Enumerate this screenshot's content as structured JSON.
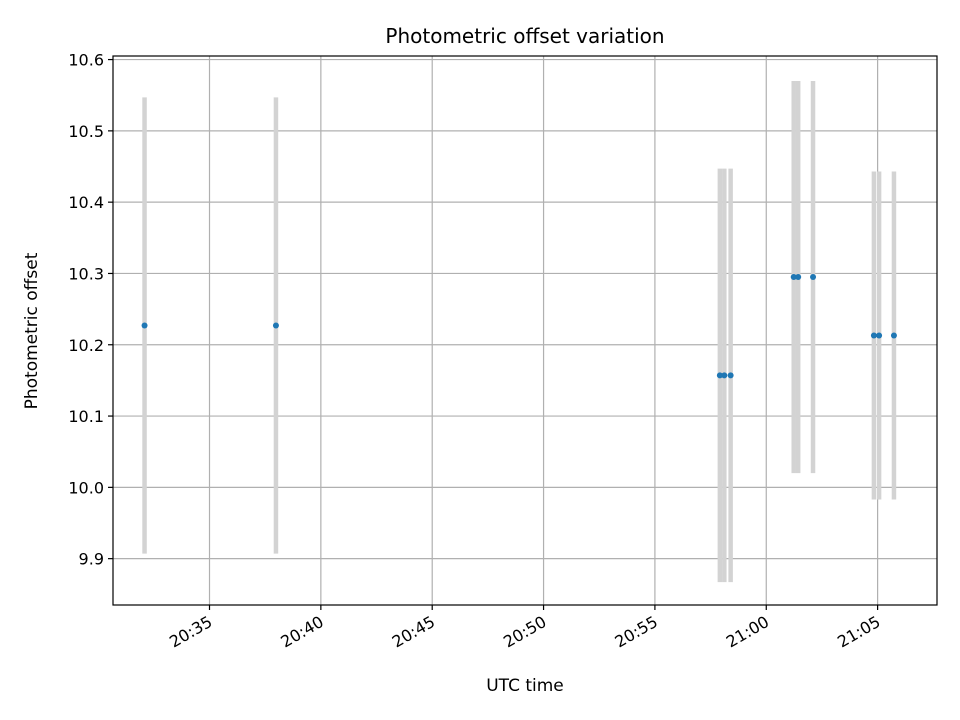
{
  "chart_data": {
    "type": "scatter",
    "title": "Photometric offset variation",
    "xlabel": "UTC time",
    "ylabel": "Photometric offset",
    "x_axis_kind": "time",
    "xlim": [
      "20:30:40",
      "21:07:40"
    ],
    "ylim": [
      9.835,
      10.605
    ],
    "grid": true,
    "x_ticks": [
      "20:35",
      "20:40",
      "20:45",
      "20:50",
      "20:55",
      "21:00",
      "21:05"
    ],
    "y_ticks": [
      9.9,
      10.0,
      10.1,
      10.2,
      10.3,
      10.4,
      10.5,
      10.6
    ],
    "y_tick_labels": [
      "9.9",
      "10.0",
      "10.1",
      "10.2",
      "10.3",
      "10.4",
      "10.5",
      "10.6"
    ],
    "colors": {
      "marker": "#1f77b4",
      "errorbar": "#d3d3d3",
      "grid": "#b0b0b0"
    },
    "points": [
      {
        "x": "20:32:05",
        "y": 10.227,
        "yerr": 0.32
      },
      {
        "x": "20:37:59",
        "y": 10.227,
        "yerr": 0.32
      },
      {
        "x": "20:57:55",
        "y": 10.157,
        "yerr": 0.29
      },
      {
        "x": "20:58:07",
        "y": 10.157,
        "yerr": 0.29
      },
      {
        "x": "20:58:24",
        "y": 10.157,
        "yerr": 0.29
      },
      {
        "x": "21:01:14",
        "y": 10.295,
        "yerr": 0.275
      },
      {
        "x": "21:01:26",
        "y": 10.295,
        "yerr": 0.275
      },
      {
        "x": "21:02:06",
        "y": 10.295,
        "yerr": 0.275
      },
      {
        "x": "21:04:50",
        "y": 10.213,
        "yerr": 0.23
      },
      {
        "x": "21:05:04",
        "y": 10.213,
        "yerr": 0.23
      },
      {
        "x": "21:05:44",
        "y": 10.213,
        "yerr": 0.23
      }
    ]
  }
}
